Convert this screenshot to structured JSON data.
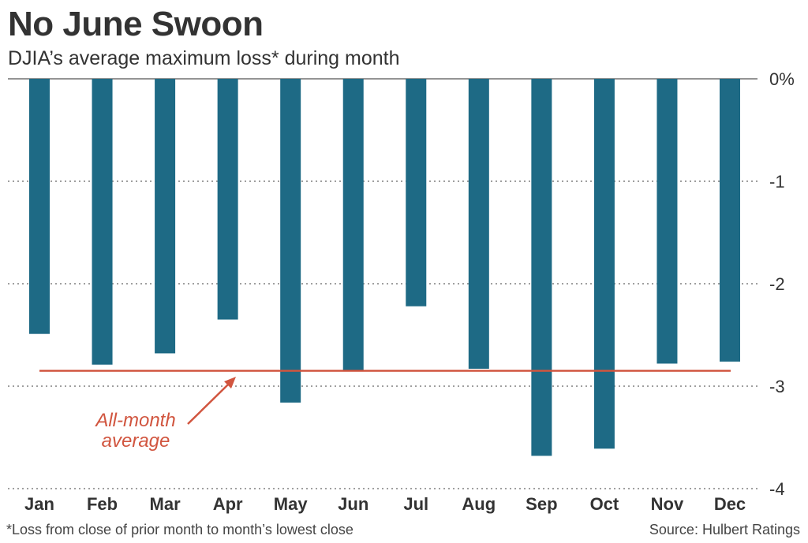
{
  "chart_data": {
    "type": "bar",
    "title": "No June Swoon",
    "subtitle": "DJIA’s average maximum loss* during month",
    "categories": [
      "Jan",
      "Feb",
      "Mar",
      "Apr",
      "May",
      "Jun",
      "Jul",
      "Aug",
      "Sep",
      "Oct",
      "Nov",
      "Dec"
    ],
    "values": [
      -2.49,
      -2.79,
      -2.68,
      -2.35,
      -3.16,
      -2.85,
      -2.22,
      -2.83,
      -3.68,
      -3.61,
      -2.78,
      -2.76
    ],
    "ylim": [
      -4,
      0
    ],
    "yticks": [
      0,
      -1,
      -2,
      -3,
      -4
    ],
    "ytick_labels": [
      "0%",
      "-1",
      "-2",
      "-3",
      "-4"
    ],
    "average": -2.85,
    "average_label_line1": "All-month",
    "average_label_line2": "average",
    "bar_color": "#1e6a85",
    "average_color": "#d1553f",
    "footnote": "*Loss from close of prior month to month’s lowest close",
    "source": "Source: Hulbert Ratings"
  }
}
